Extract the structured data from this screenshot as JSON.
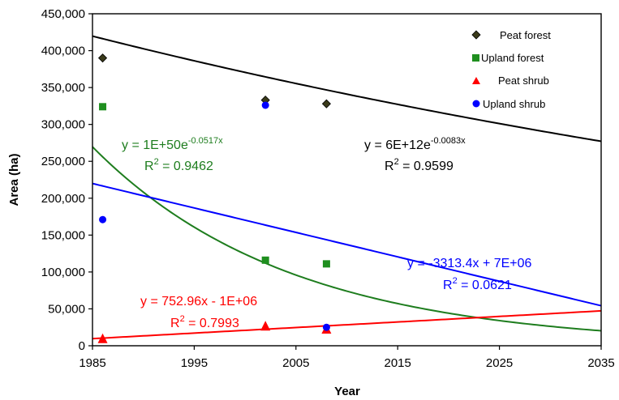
{
  "chart_data": {
    "type": "scatter",
    "xlabel": "Year",
    "ylabel": "Area (ha)",
    "xlim": [
      1985,
      2035
    ],
    "ylim": [
      0,
      450000
    ],
    "x_ticks": [
      "1985",
      "1995",
      "2005",
      "2015",
      "2025",
      "2035"
    ],
    "y_ticks": [
      "0",
      "50,000",
      "100,000",
      "150,000",
      "200,000",
      "250,000",
      "300,000",
      "350,000",
      "400,000",
      "450,000"
    ],
    "legend_position": "top-right",
    "series": [
      {
        "name": "Peat forest",
        "marker": "diamond",
        "color": "#3a3a1a",
        "points": [
          [
            1986,
            390000
          ],
          [
            2002,
            333000
          ],
          [
            2008,
            328000
          ]
        ],
        "trendline": {
          "type": "exponential",
          "a": 6000000000000.0,
          "b": -0.0083,
          "color": "#000000"
        }
      },
      {
        "name": "Upland forest",
        "marker": "square",
        "color": "#1f8f1f",
        "points": [
          [
            1986,
            324000
          ],
          [
            2002,
            116000
          ],
          [
            2008,
            111000
          ]
        ],
        "trendline": {
          "type": "exponential",
          "a": 1e+50,
          "b": -0.0517,
          "color": "#1e7d1e"
        }
      },
      {
        "name": "Peat shrub",
        "marker": "triangle",
        "color": "#ff0000",
        "points": [
          [
            1986,
            9000
          ],
          [
            2002,
            26000
          ],
          [
            2008,
            22000
          ]
        ],
        "trendline": {
          "type": "linear",
          "slope": 752.96,
          "intercept": -1485000,
          "color": "#ff0000"
        }
      },
      {
        "name": "Upland shrub",
        "marker": "circle",
        "color": "#0000ff",
        "points": [
          [
            1986,
            171000
          ],
          [
            2002,
            326000
          ],
          [
            2008,
            25000
          ]
        ],
        "trendline": {
          "type": "linear",
          "slope": -3313.4,
          "intercept": 6797000,
          "color": "#0000ff"
        }
      }
    ],
    "annotations": [
      {
        "id": "peat-forest-eq",
        "series": "Peat forest",
        "eq_main": "y = 6E+12e",
        "eq_sup": "-0.0083x",
        "r2_value": " = 0.9599",
        "color": "#000000"
      },
      {
        "id": "upland-forest-eq",
        "series": "Upland forest",
        "eq_main": "y = 1E+50e",
        "eq_sup": "-0.0517x",
        "r2_value": " = 0.9462",
        "color": "#1e7d1e"
      },
      {
        "id": "peat-shrub-eq",
        "series": "Peat shrub",
        "eq_main": "y = 752.96x - 1E+06",
        "eq_sup": "",
        "r2_value": " = 0.7993",
        "color": "#ff0000"
      },
      {
        "id": "upland-shrub-eq",
        "series": "Upland shrub",
        "eq_main": "y = -3313.4x + 7E+06",
        "eq_sup": "",
        "r2_value": " = 0.0621",
        "color": "#0000ff"
      }
    ],
    "r2_prefix": "R",
    "r2_sup": "2"
  }
}
